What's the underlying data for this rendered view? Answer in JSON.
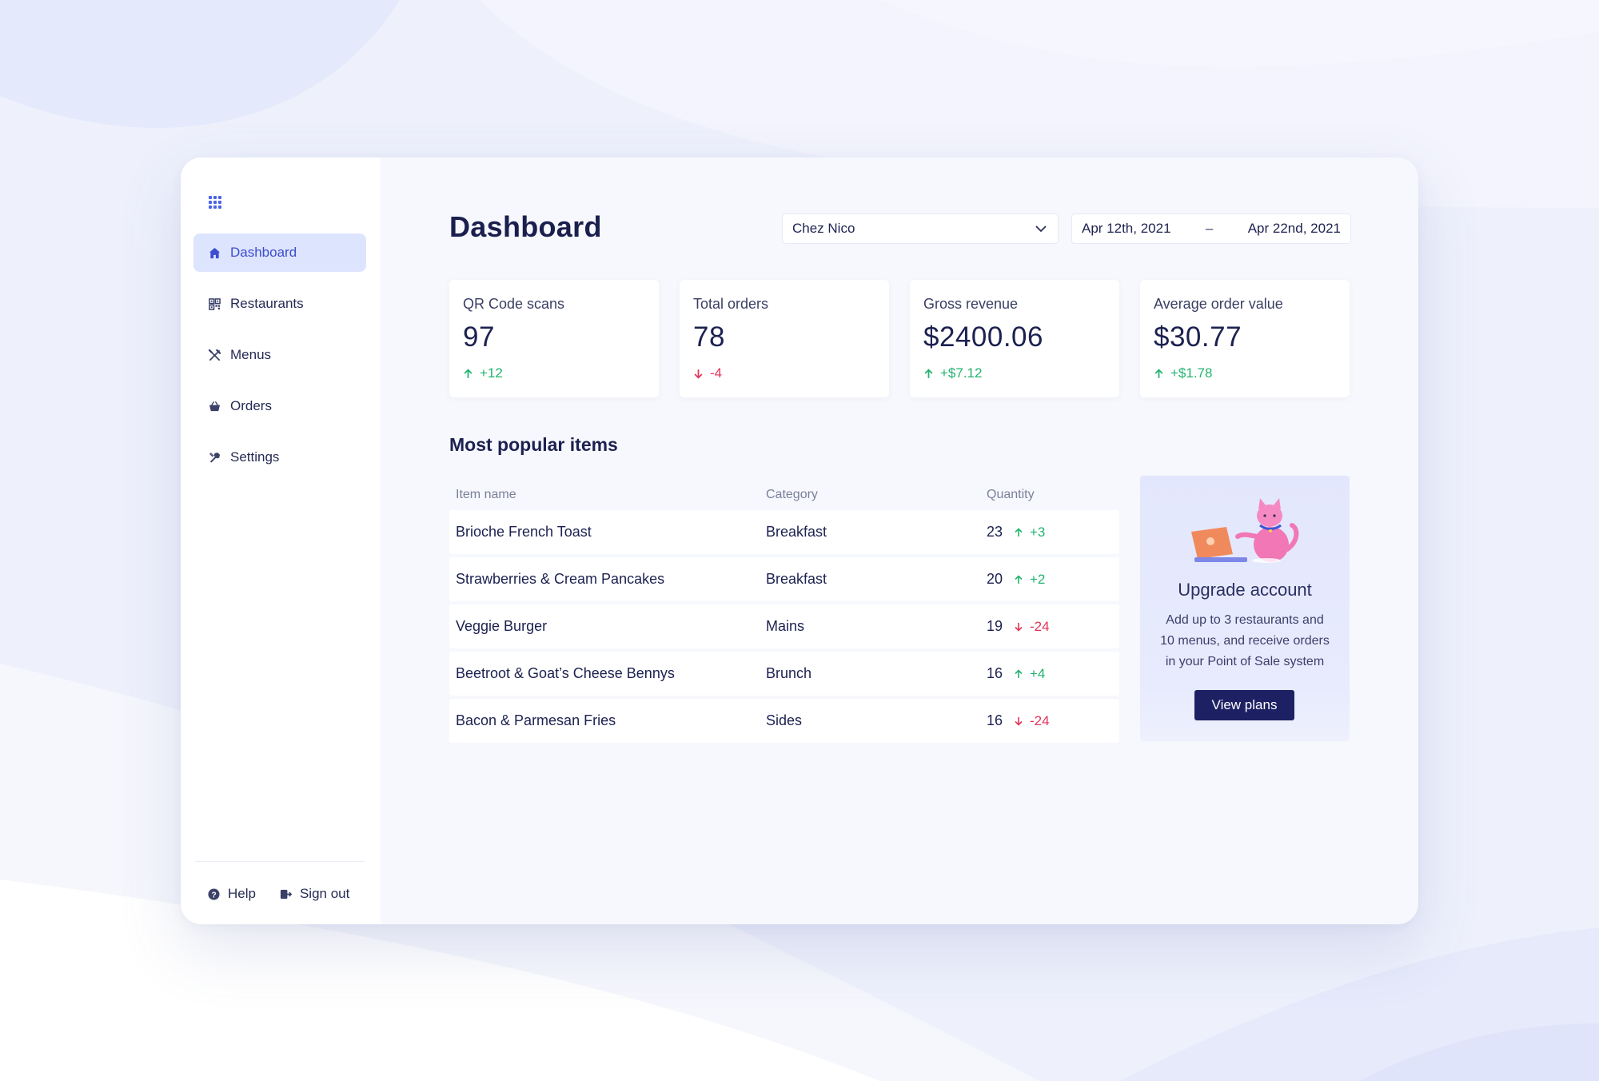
{
  "colors": {
    "accent": "#4b63e6",
    "nav_active_bg": "#dde4fd",
    "up": "#23b26f",
    "down": "#e2345a",
    "primary_button": "#1d2163"
  },
  "sidebar": {
    "app_icon": "grid-icon",
    "items": [
      {
        "label": "Dashboard",
        "icon": "home-icon",
        "active": true
      },
      {
        "label": "Restaurants",
        "icon": "qr-code-icon",
        "active": false
      },
      {
        "label": "Menus",
        "icon": "utensils-icon",
        "active": false
      },
      {
        "label": "Orders",
        "icon": "basket-icon",
        "active": false
      },
      {
        "label": "Settings",
        "icon": "tools-icon",
        "active": false
      }
    ],
    "footer": {
      "help_label": "Help",
      "signout_label": "Sign out"
    }
  },
  "header": {
    "title": "Dashboard",
    "restaurant_select": "Chez Nico",
    "date_start": "Apr 12th, 2021",
    "date_separator": "–",
    "date_end": "Apr 22nd, 2021"
  },
  "stats": [
    {
      "label": "QR Code scans",
      "value": "97",
      "change": "+12",
      "trend": "up"
    },
    {
      "label": "Total orders",
      "value": "78",
      "change": "-4",
      "trend": "down"
    },
    {
      "label": "Gross revenue",
      "value": "$2400.06",
      "change": "+$7.12",
      "trend": "up"
    },
    {
      "label": "Average order value",
      "value": "$30.77",
      "change": "+$1.78",
      "trend": "up"
    }
  ],
  "popular": {
    "title": "Most popular items",
    "columns": [
      "Item name",
      "Category",
      "Quantity"
    ],
    "rows": [
      {
        "name": "Brioche French Toast",
        "category": "Breakfast",
        "qty": "23",
        "change": "+3",
        "trend": "up"
      },
      {
        "name": "Strawberries & Cream Pancakes",
        "category": "Breakfast",
        "qty": "20",
        "change": "+2",
        "trend": "up"
      },
      {
        "name": "Veggie Burger",
        "category": "Mains",
        "qty": "19",
        "change": "-24",
        "trend": "down"
      },
      {
        "name": "Beetroot & Goat’s Cheese Bennys",
        "category": "Brunch",
        "qty": "16",
        "change": "+4",
        "trend": "up"
      },
      {
        "name": "Bacon & Parmesan Fries",
        "category": "Sides",
        "qty": "16",
        "change": "-24",
        "trend": "down"
      }
    ]
  },
  "upgrade": {
    "title": "Upgrade account",
    "text": "Add up to 3 restaurants and 10 menus, and receive orders in your Point of Sale system",
    "button": "View plans",
    "illustration": "cat-laptop-illustration"
  }
}
